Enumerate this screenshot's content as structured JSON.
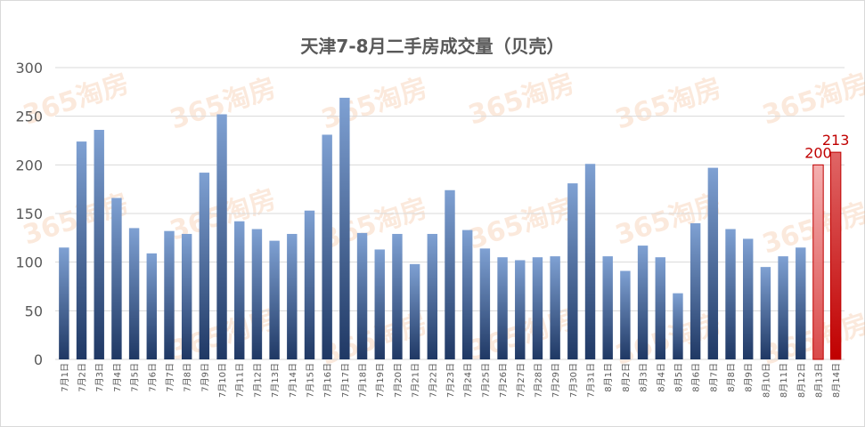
{
  "chart_data": {
    "type": "bar",
    "title": "天津7-8月二手房成交量（贝壳）",
    "xlabel": "",
    "ylabel": "",
    "ylim": [
      0,
      300
    ],
    "yticks": [
      0,
      50,
      100,
      150,
      200,
      250,
      300
    ],
    "grid": true,
    "watermark": "365淘房",
    "categories": [
      "7月1日",
      "7月2日",
      "7月3日",
      "7月4日",
      "7月5日",
      "7月6日",
      "7月7日",
      "7月8日",
      "7月9日",
      "7月10日",
      "7月11日",
      "7月12日",
      "7月13日",
      "7月14日",
      "7月15日",
      "7月16日",
      "7月17日",
      "7月18日",
      "7月19日",
      "7月20日",
      "7月21日",
      "7月22日",
      "7月23日",
      "7月24日",
      "7月25日",
      "7月26日",
      "7月27日",
      "7月28日",
      "7月29日",
      "7月30日",
      "7月31日",
      "8月1日",
      "8月2日",
      "8月3日",
      "8月4日",
      "8月5日",
      "8月6日",
      "8月7日",
      "8月8日",
      "8月9日",
      "8月10日",
      "8月11日",
      "8月12日",
      "8月13日",
      "8月14日"
    ],
    "values": [
      115,
      224,
      236,
      166,
      135,
      109,
      132,
      129,
      192,
      252,
      142,
      134,
      122,
      129,
      153,
      231,
      269,
      130,
      113,
      129,
      98,
      129,
      174,
      133,
      114,
      105,
      102,
      105,
      106,
      181,
      201,
      106,
      91,
      117,
      105,
      68,
      140,
      197,
      134,
      124,
      95,
      106,
      115,
      200,
      213
    ],
    "highlight_indices": [
      43,
      44
    ],
    "data_labels": [
      {
        "index": 43,
        "text": "200"
      },
      {
        "index": 44,
        "text": "213"
      }
    ],
    "colors": {
      "bar": "#2f5597",
      "bar_light": "#7fa1d3",
      "highlight": "#c00000",
      "highlight_light": "#f4b0b0",
      "grid": "#d9d9d9"
    }
  }
}
